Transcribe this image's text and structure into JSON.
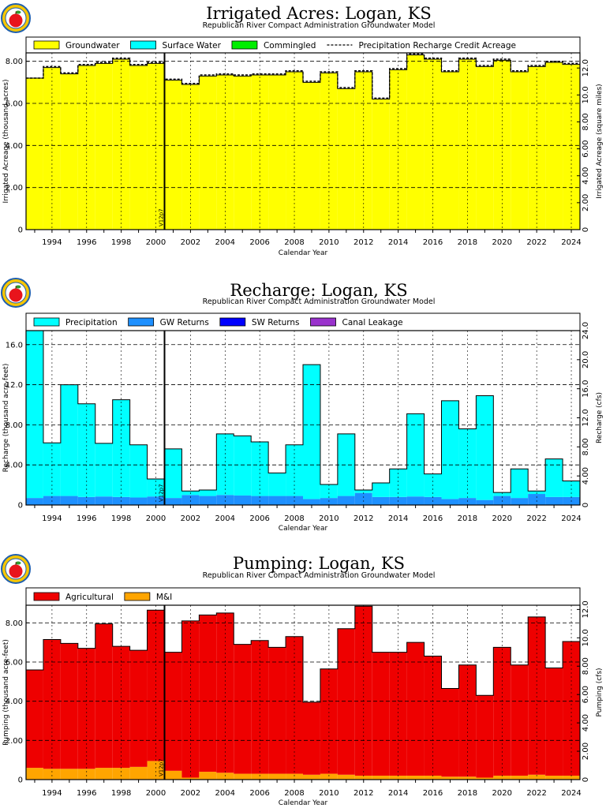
{
  "chart_data": [
    {
      "type": "bar",
      "stacked": true,
      "title": "Irrigated Acres: Logan, KS",
      "subtitle": "Republican River Compact Administration Groundwater Model",
      "xlabel": "Calendar Year",
      "ylabel": "Irrigated Acreage (thousand acres)",
      "y2label": "Irrigated Acreage (square miles)",
      "marker_label": "V12p7",
      "marker_x": 2000.5,
      "xlim": [
        1992.5,
        2024.5
      ],
      "ylim": [
        0,
        8.4
      ],
      "y2lim": [
        0,
        13.125
      ],
      "yticks": [
        "0",
        "2.00",
        "4.00",
        "6.00",
        "8.00"
      ],
      "yticks_values": [
        0,
        2,
        4,
        6,
        8
      ],
      "y2ticks": [
        "0",
        "2.00",
        "4.00",
        "6.00",
        "8.00",
        "10.0",
        "12.0"
      ],
      "y2ticks_values": [
        0,
        2,
        4,
        6,
        8,
        10,
        12
      ],
      "xticks": [
        "1994",
        "1996",
        "1998",
        "2000",
        "2002",
        "2004",
        "2006",
        "2008",
        "2010",
        "2012",
        "2014",
        "2016",
        "2018",
        "2020",
        "2022",
        "2024"
      ],
      "xticks_values": [
        1994,
        1996,
        1998,
        2000,
        2002,
        2004,
        2006,
        2008,
        2010,
        2012,
        2014,
        2016,
        2018,
        2020,
        2022,
        2024
      ],
      "x": [
        1993,
        1994,
        1995,
        1996,
        1997,
        1998,
        1999,
        2000,
        2001,
        2002,
        2003,
        2004,
        2005,
        2006,
        2007,
        2008,
        2009,
        2010,
        2011,
        2012,
        2013,
        2014,
        2015,
        2016,
        2017,
        2018,
        2019,
        2020,
        2021,
        2022,
        2023,
        2024
      ],
      "series": [
        {
          "name": "Groundwater",
          "color": "#ffff00",
          "values": [
            7.2,
            7.7,
            7.4,
            7.8,
            7.9,
            8.1,
            7.8,
            7.9,
            7.1,
            6.9,
            7.3,
            7.35,
            7.3,
            7.35,
            7.35,
            7.5,
            7.0,
            7.45,
            6.7,
            7.5,
            6.2,
            7.6,
            8.3,
            8.1,
            7.5,
            8.1,
            7.75,
            8.05,
            7.5,
            7.75,
            7.95,
            7.85
          ]
        },
        {
          "name": "Surface Water",
          "color": "#00ffff",
          "values": [
            0,
            0,
            0,
            0,
            0,
            0,
            0,
            0,
            0,
            0,
            0,
            0,
            0,
            0,
            0,
            0,
            0,
            0,
            0,
            0,
            0,
            0,
            0,
            0,
            0,
            0,
            0,
            0,
            0,
            0,
            0,
            0
          ]
        },
        {
          "name": "Commingled",
          "color": "#00ee00",
          "values": [
            0,
            0,
            0,
            0,
            0,
            0,
            0,
            0,
            0,
            0,
            0,
            0,
            0,
            0,
            0,
            0,
            0,
            0,
            0,
            0,
            0,
            0,
            0,
            0,
            0,
            0,
            0,
            0,
            0,
            0,
            0,
            0
          ]
        }
      ],
      "line_series": {
        "name": "Precipitation Recharge Credit Acreage",
        "values": [
          7.2,
          7.75,
          7.45,
          7.85,
          7.95,
          8.15,
          7.85,
          7.95,
          7.15,
          6.95,
          7.35,
          7.4,
          7.35,
          7.4,
          7.4,
          7.55,
          7.05,
          7.5,
          6.75,
          7.55,
          6.25,
          7.65,
          8.35,
          8.15,
          7.55,
          8.15,
          7.8,
          8.1,
          7.55,
          7.8,
          8.0,
          7.9
        ]
      },
      "legend": [
        {
          "label": "Groundwater",
          "color": "#ffff00"
        },
        {
          "label": "Surface Water",
          "color": "#00ffff"
        },
        {
          "label": "Commingled",
          "color": "#00ee00"
        },
        {
          "label": "Precipitation Recharge Credit Acreage",
          "dashed": true
        }
      ],
      "grid": true
    },
    {
      "type": "bar",
      "stacked": true,
      "title": "Recharge: Logan, KS",
      "subtitle": "Republican River Compact Administration Groundwater Model",
      "xlabel": "Calendar Year",
      "ylabel": "Recharge (thousand acre-feet)",
      "y2label": "Recharge (cfs)",
      "marker_label": "V12p7",
      "marker_x": 2000.5,
      "xlim": [
        1992.5,
        2024.5
      ],
      "ylim": [
        0,
        17.4
      ],
      "y2lim": [
        0,
        24.0
      ],
      "yticks": [
        "0",
        "4.00",
        "8.00",
        "12.0",
        "16.0"
      ],
      "yticks_values": [
        0,
        4,
        8,
        12,
        16
      ],
      "y2ticks": [
        "0",
        "4.00",
        "8.00",
        "12.0",
        "16.0",
        "20.0",
        "24.0"
      ],
      "y2ticks_values": [
        0,
        4,
        8,
        12,
        16,
        20,
        24
      ],
      "xticks": [
        "1994",
        "1996",
        "1998",
        "2000",
        "2002",
        "2004",
        "2006",
        "2008",
        "2010",
        "2012",
        "2014",
        "2016",
        "2018",
        "2020",
        "2022",
        "2024"
      ],
      "xticks_values": [
        1994,
        1996,
        1998,
        2000,
        2002,
        2004,
        2006,
        2008,
        2010,
        2012,
        2014,
        2016,
        2018,
        2020,
        2022,
        2024
      ],
      "x": [
        1993,
        1994,
        1995,
        1996,
        1997,
        1998,
        1999,
        2000,
        2001,
        2002,
        2003,
        2004,
        2005,
        2006,
        2007,
        2008,
        2009,
        2010,
        2011,
        2012,
        2013,
        2014,
        2015,
        2016,
        2017,
        2018,
        2019,
        2020,
        2021,
        2022,
        2023,
        2024
      ],
      "series": [
        {
          "name": "GW Returns",
          "color": "#1e90ff",
          "values": [
            0.7,
            0.9,
            0.9,
            0.8,
            0.85,
            0.8,
            0.75,
            0.85,
            0.7,
            1.0,
            0.9,
            1.0,
            0.95,
            0.9,
            0.9,
            0.9,
            0.6,
            0.7,
            0.9,
            1.2,
            0.8,
            0.8,
            0.85,
            0.8,
            0.6,
            0.7,
            0.5,
            0.9,
            0.7,
            1.1,
            0.8,
            0.8
          ]
        },
        {
          "name": "Precipitation",
          "color": "#00ffff",
          "values": [
            16.7,
            5.3,
            11.1,
            9.3,
            5.3,
            9.7,
            5.25,
            1.75,
            4.9,
            0.4,
            0.6,
            6.1,
            5.95,
            5.4,
            2.3,
            5.1,
            13.4,
            1.35,
            6.2,
            0.3,
            1.4,
            2.8,
            8.25,
            2.3,
            9.8,
            6.9,
            10.4,
            0.35,
            2.9,
            0.3,
            3.8,
            1.6
          ]
        },
        {
          "name": "SW Returns",
          "color": "#0000ff",
          "values": [
            0,
            0,
            0,
            0,
            0,
            0,
            0,
            0,
            0,
            0,
            0,
            0,
            0,
            0,
            0,
            0,
            0,
            0,
            0,
            0,
            0,
            0,
            0,
            0,
            0,
            0,
            0,
            0,
            0,
            0,
            0,
            0
          ]
        },
        {
          "name": "Canal Leakage",
          "color": "#9932cc",
          "values": [
            0,
            0,
            0,
            0,
            0,
            0,
            0,
            0,
            0,
            0,
            0,
            0,
            0,
            0,
            0,
            0,
            0,
            0,
            0,
            0,
            0,
            0,
            0,
            0,
            0,
            0,
            0,
            0,
            0,
            0,
            0,
            0
          ]
        }
      ],
      "legend": [
        {
          "label": "Precipitation",
          "color": "#00ffff"
        },
        {
          "label": "GW Returns",
          "color": "#1e90ff"
        },
        {
          "label": "SW Returns",
          "color": "#0000ff"
        },
        {
          "label": "Canal Leakage",
          "color": "#9932cc"
        }
      ],
      "grid": true
    },
    {
      "type": "bar",
      "stacked": true,
      "title": "Pumping: Logan, KS",
      "subtitle": "Republican River Compact Administration Groundwater Model",
      "xlabel": "Calendar Year",
      "ylabel": "Pumping (thousand acre-feet)",
      "y2label": "Pumping (cfs)",
      "marker_label": "V12p7",
      "marker_x": 2000.5,
      "xlim": [
        1992.5,
        2024.5
      ],
      "ylim": [
        0,
        8.9
      ],
      "y2lim": [
        0,
        12.3
      ],
      "yticks": [
        "0",
        "2.00",
        "4.00",
        "6.00",
        "8.00"
      ],
      "yticks_values": [
        0,
        2,
        4,
        6,
        8
      ],
      "y2ticks": [
        "0",
        "2.00",
        "4.00",
        "6.00",
        "8.00",
        "10.0",
        "12.0"
      ],
      "y2ticks_values": [
        0,
        2,
        4,
        6,
        8,
        10,
        12
      ],
      "xticks": [
        "1994",
        "1996",
        "1998",
        "2000",
        "2002",
        "2004",
        "2006",
        "2008",
        "2010",
        "2012",
        "2014",
        "2016",
        "2018",
        "2020",
        "2022",
        "2024"
      ],
      "xticks_values": [
        1994,
        1996,
        1998,
        2000,
        2002,
        2004,
        2006,
        2008,
        2010,
        2012,
        2014,
        2016,
        2018,
        2020,
        2022,
        2024
      ],
      "x": [
        1993,
        1994,
        1995,
        1996,
        1997,
        1998,
        1999,
        2000,
        2001,
        2002,
        2003,
        2004,
        2005,
        2006,
        2007,
        2008,
        2009,
        2010,
        2011,
        2012,
        2013,
        2014,
        2015,
        2016,
        2017,
        2018,
        2019,
        2020,
        2021,
        2022,
        2023,
        2024
      ],
      "series": [
        {
          "name": "M&I",
          "color": "#ffa500",
          "values": [
            0.6,
            0.55,
            0.55,
            0.55,
            0.6,
            0.6,
            0.65,
            0.95,
            0.45,
            0.1,
            0.4,
            0.35,
            0.3,
            0.3,
            0.3,
            0.3,
            0.25,
            0.3,
            0.25,
            0.2,
            0.2,
            0.2,
            0.2,
            0.2,
            0.15,
            0.15,
            0.1,
            0.2,
            0.2,
            0.25,
            0.2,
            0.2
          ]
        },
        {
          "name": "Agricultural",
          "color": "#ee0000",
          "values": [
            5.0,
            6.6,
            6.4,
            6.15,
            7.35,
            6.2,
            5.95,
            7.7,
            6.05,
            8.0,
            8.0,
            8.15,
            6.6,
            6.8,
            6.45,
            7.0,
            3.7,
            5.35,
            7.45,
            8.65,
            6.3,
            6.3,
            6.8,
            6.1,
            4.5,
            5.7,
            4.2,
            6.55,
            5.65,
            8.05,
            5.5,
            6.85
          ]
        }
      ],
      "legend": [
        {
          "label": "Agricultural",
          "color": "#ee0000"
        },
        {
          "label": "M&I",
          "color": "#ffa500"
        }
      ],
      "grid": true
    }
  ]
}
